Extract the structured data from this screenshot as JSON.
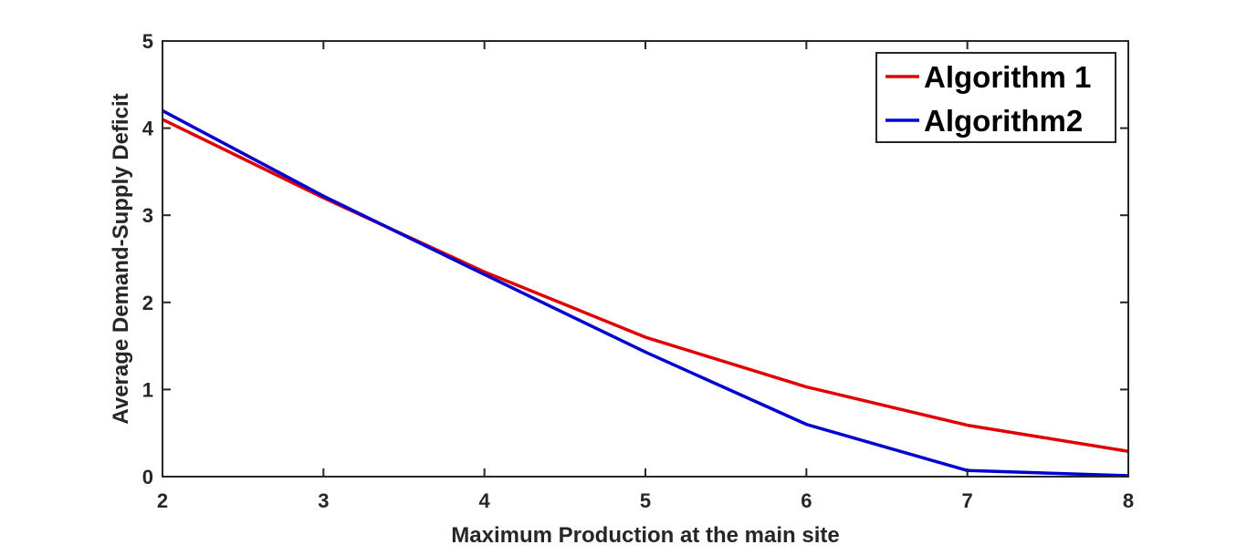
{
  "chart_data": {
    "type": "line",
    "title": "",
    "xlabel": "Maximum Production at the main site",
    "ylabel": "Average Demand-Supply Deficit",
    "xlim": [
      2,
      8
    ],
    "ylim": [
      0,
      5
    ],
    "xticks": [
      2,
      3,
      4,
      5,
      6,
      7,
      8
    ],
    "yticks": [
      0,
      1,
      2,
      3,
      4,
      5
    ],
    "grid": false,
    "legend_position": "top-right",
    "series": [
      {
        "name": "Algorithm 1",
        "color": "#e00000",
        "x": [
          2,
          3,
          4,
          5,
          6,
          7,
          8
        ],
        "y": [
          4.1,
          3.2,
          2.35,
          1.6,
          1.03,
          0.59,
          0.29
        ]
      },
      {
        "name": "Algorithm2",
        "color": "#0000d0",
        "x": [
          2,
          3,
          4,
          5,
          6,
          7,
          8
        ],
        "y": [
          4.2,
          3.22,
          2.32,
          1.43,
          0.6,
          0.07,
          0.01
        ]
      }
    ]
  }
}
